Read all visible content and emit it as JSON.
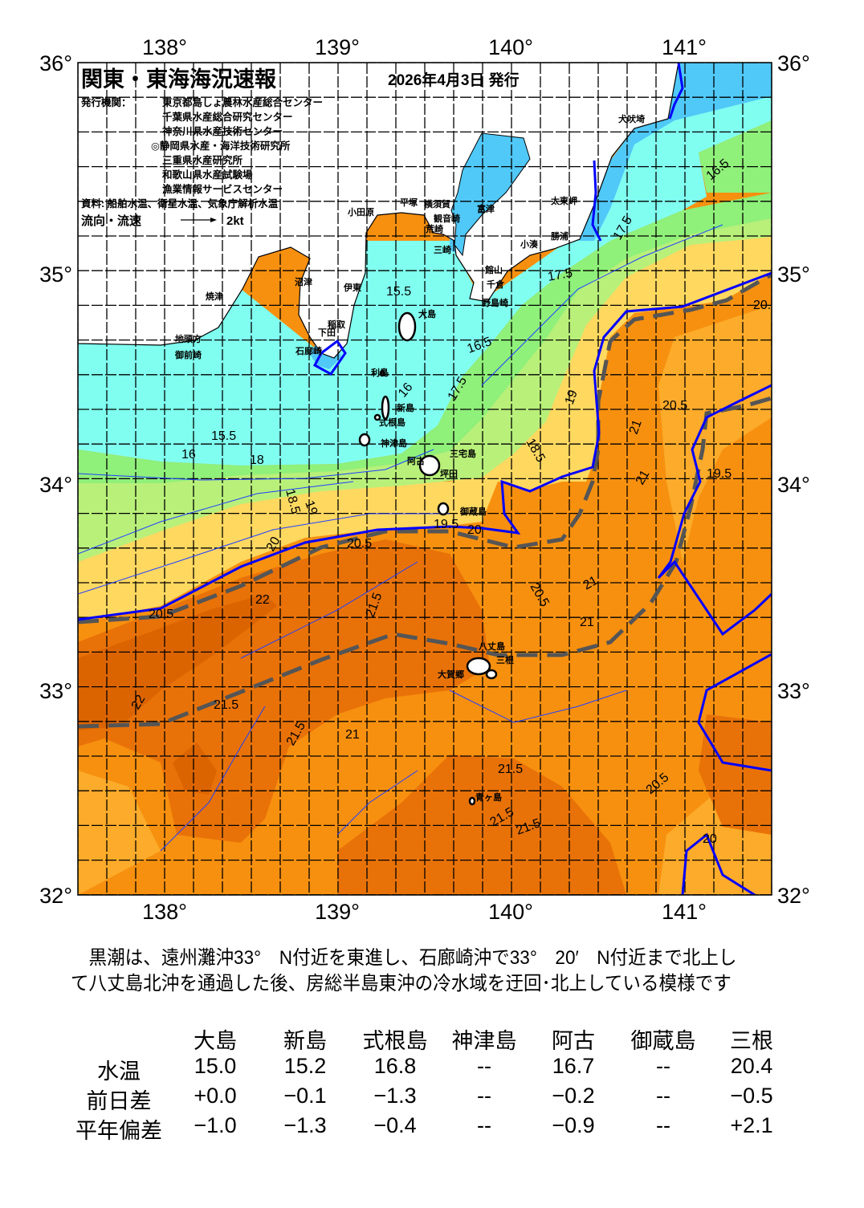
{
  "header": {
    "title": "関東・東海海況速報",
    "date": "2026年4月3日 発行",
    "issuer_label": "発行機関：",
    "issuers": [
      "東京都島しょ農林水産総合センター",
      "千葉県水産総合研究センター",
      "神奈川県水産技術センター",
      "◎静岡県水産・海洋技術研究所",
      "三重県水産研究所",
      "和歌山県水産試験場",
      "漁業情報サービスセンター"
    ],
    "sources": "資料: 船舶水温、衛星水温、気象庁解析水温",
    "flow_label": "流向・流速",
    "flow_scale": "2kt"
  },
  "axes": {
    "lon_labels": [
      "138°",
      "139°",
      "140°",
      "141°"
    ],
    "lat_labels": [
      "36°",
      "35°",
      "34°",
      "33°",
      "32°"
    ]
  },
  "places": [
    "犬吠埼",
    "太東岬",
    "勝浦",
    "小湊",
    "館山",
    "千倉",
    "野島崎",
    "富津",
    "横須賀",
    "観音崎",
    "荒崎",
    "三崎",
    "平塚",
    "小田原",
    "伊東",
    "沼津",
    "焼津",
    "地頭方",
    "御前崎",
    "稲取",
    "下田",
    "石廊崎",
    "大島",
    "利島",
    "新島",
    "式根島",
    "神津島",
    "三宅島",
    "阿古",
    "坪田",
    "御蔵島",
    "八丈島",
    "三根",
    "大賀郷",
    "青ヶ島"
  ],
  "isotherm_labels": [
    "15.5",
    "15.5",
    "16",
    "16",
    "16.5",
    "16.5",
    "17.5",
    "17.5",
    "17.5",
    "18",
    "18.5",
    "18.5",
    "19",
    "19",
    "19.5",
    "19.5",
    "20",
    "20",
    "20.5",
    "20.5",
    "20.5",
    "20.5",
    "20.5",
    "21",
    "21",
    "21",
    "21",
    "21",
    "21.5",
    "21.5",
    "21.5",
    "21.5",
    "21.5",
    "21.5",
    "22",
    "22",
    "20.5",
    "20"
  ],
  "colors": {
    "kuroshio_axis": "#555555",
    "isotherm_major": "#0000ff",
    "land": "#ffffff",
    "temp_15": "#80fff0",
    "temp_14": "#50c8f8",
    "temp_16": "#8ff07a",
    "temp_17": "#b8f07a",
    "temp_18": "#ffe070",
    "temp_19": "#fcb030",
    "temp_20": "#f7900f",
    "temp_21": "#e87208",
    "temp_22": "#dc6400"
  },
  "summary": "　黒潮は、遠州灘沖33°　N付近を東進し、石廊崎沖で33°　20′　N付近まで北上して八丈島北沖を通過した後、房総半島東沖の冷水域を迂回･北上している模様です",
  "table": {
    "headers": [
      "大島",
      "新島",
      "式根島",
      "神津島",
      "阿古",
      "御蔵島",
      "三根"
    ],
    "rows": [
      {
        "label": "水温",
        "values": [
          "15.0",
          "15.2",
          "16.8",
          "--",
          "16.7",
          "--",
          "20.4"
        ]
      },
      {
        "label": "前日差",
        "values": [
          "+0.0",
          "−0.1",
          "−1.3",
          "--",
          "−0.2",
          "--",
          "−0.5"
        ]
      },
      {
        "label": "平年偏差",
        "values": [
          "−1.0",
          "−1.3",
          "−0.4",
          "--",
          "−0.9",
          "--",
          "+2.1"
        ]
      }
    ]
  }
}
